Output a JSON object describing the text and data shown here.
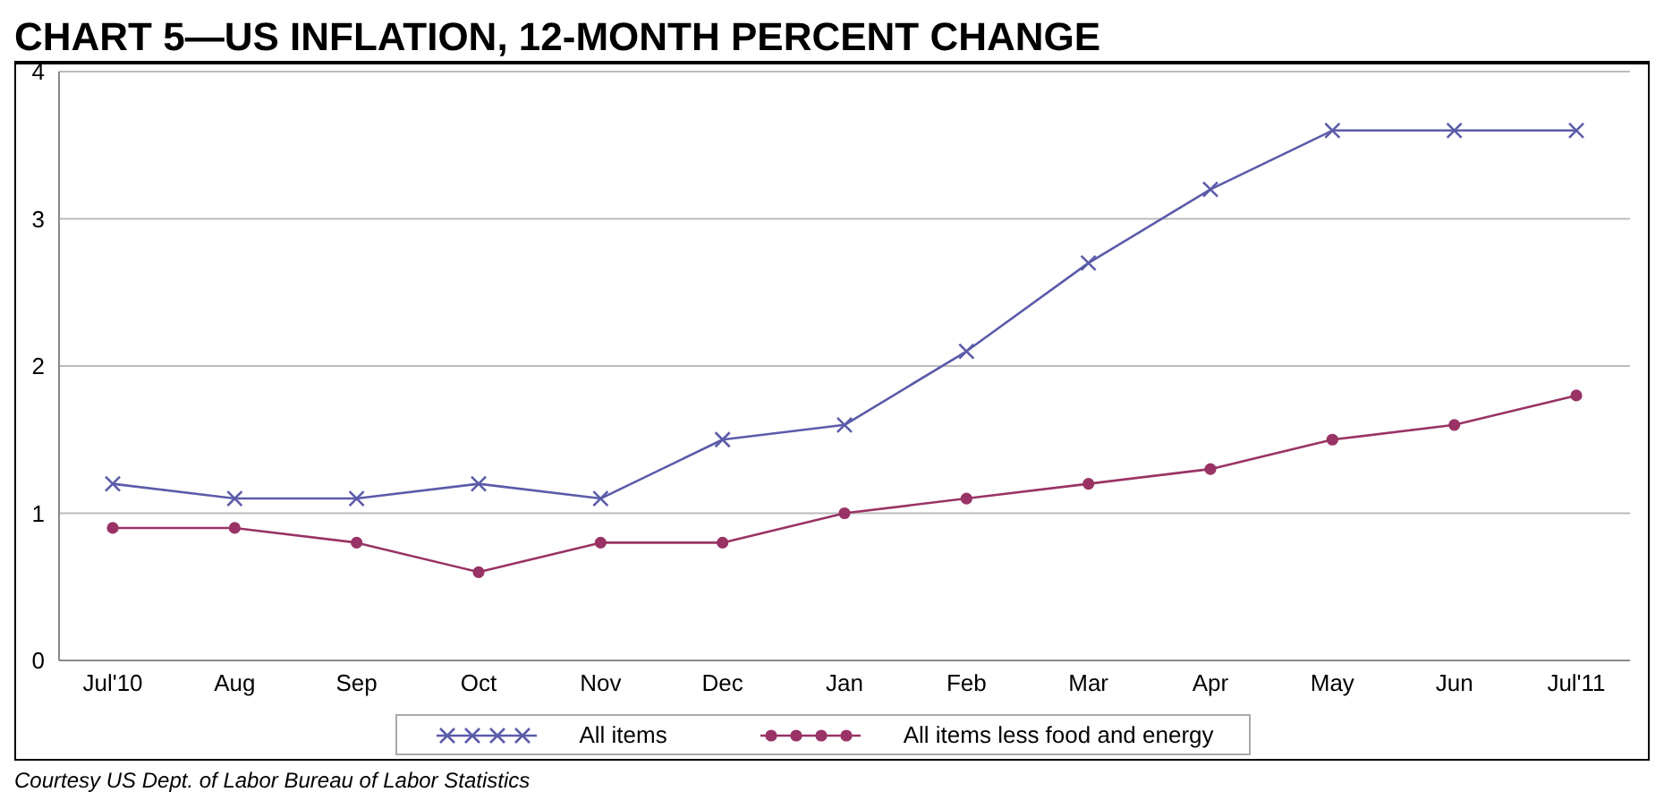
{
  "chart_data": {
    "type": "line",
    "title": "CHART 5—US INFLATION, 12-MONTH PERCENT CHANGE",
    "categories": [
      "Jul'10",
      "Aug",
      "Sep",
      "Oct",
      "Nov",
      "Dec",
      "Jan",
      "Feb",
      "Mar",
      "Apr",
      "May",
      "Jun",
      "Jul'11"
    ],
    "series": [
      {
        "name": "All items",
        "color": "#5b5baa",
        "marker": "cross",
        "values": [
          1.2,
          1.1,
          1.1,
          1.2,
          1.1,
          1.5,
          1.6,
          2.1,
          2.7,
          3.2,
          3.6,
          3.6,
          3.6
        ]
      },
      {
        "name": "All items less food and energy",
        "color": "#993366",
        "marker": "circle",
        "values": [
          0.9,
          0.9,
          0.8,
          0.6,
          0.8,
          0.8,
          1.0,
          1.1,
          1.2,
          1.3,
          1.5,
          1.6,
          1.8
        ]
      }
    ],
    "ylim": [
      0,
      4
    ],
    "yticks": [
      0,
      1,
      2,
      3,
      4
    ],
    "grid": "y",
    "legend": "bottom",
    "annotations": [
      "Courtesy US Dept. of Labor Bureau of Labor Statistics"
    ]
  }
}
